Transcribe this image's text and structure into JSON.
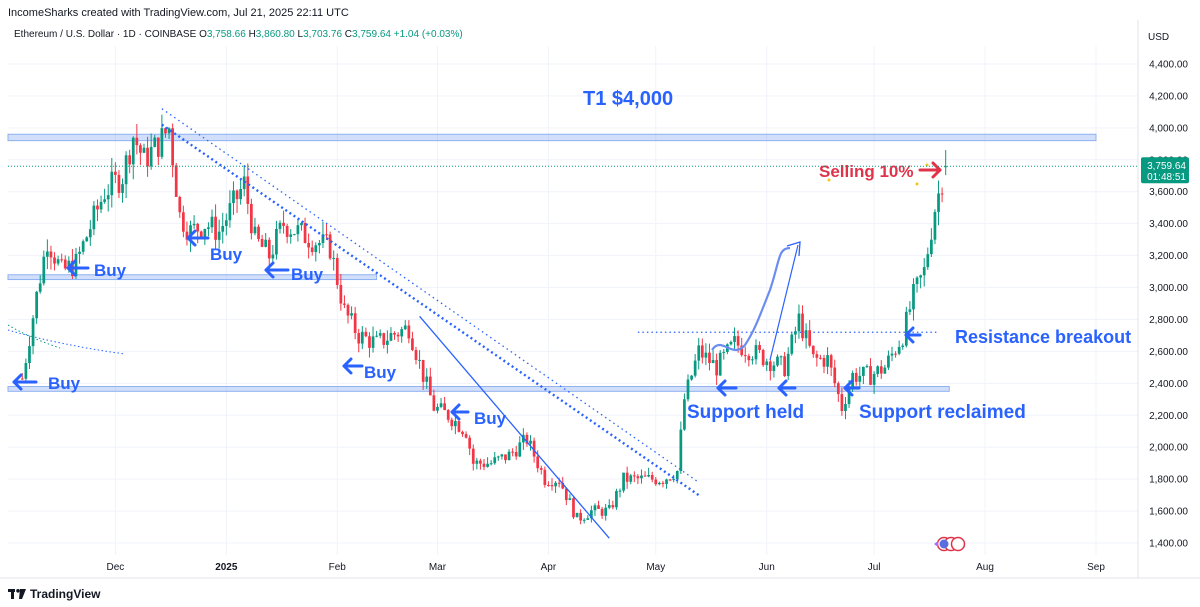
{
  "header": {
    "created_line": "IncomeSharks created with TradingView.com, Jul 21, 2025 22:11 UTC"
  },
  "symbol": {
    "name": "Ethereum / U.S. Dollar · 1D · COINBASE",
    "o_label": "O",
    "o": "3,758.66",
    "h_label": "H",
    "h": "3,860.80",
    "l_label": "L",
    "l": "3,703.76",
    "c_label": "C",
    "c": "3,759.64",
    "change": "+1.04 (+0.03%)"
  },
  "currency": "USD",
  "price_tag": {
    "price": "3,759.64",
    "countdown": "01:48:51"
  },
  "footer": {
    "brand": "TradingView"
  },
  "colors": {
    "up": "#089981",
    "down": "#f23645",
    "annotation": "#2962ff",
    "selling": "#e0334a",
    "zone": "#5b8def"
  },
  "chart_data": {
    "type": "candlestick",
    "title": "Ethereum / U.S. Dollar · 1D · COINBASE",
    "xlabel": "",
    "ylabel": "USD",
    "ylim": [
      1300,
      4550
    ],
    "y_ticks": [
      "1,400.00",
      "1,600.00",
      "1,800.00",
      "2,000.00",
      "2,200.00",
      "2,400.00",
      "2,600.00",
      "2,800.00",
      "3,000.00",
      "3,200.00",
      "3,400.00",
      "3,600.00",
      "3,800.00",
      "4,000.00",
      "4,200.00",
      "4,400.00"
    ],
    "y_tick_values": [
      1400,
      1600,
      1800,
      2000,
      2200,
      2400,
      2600,
      2800,
      3000,
      3200,
      3400,
      3600,
      3800,
      4000,
      4200,
      4400
    ],
    "x_ticks": [
      {
        "label": "Dec",
        "date": "2024-12-01"
      },
      {
        "label": "2025",
        "date": "2025-01-01"
      },
      {
        "label": "Feb",
        "date": "2025-02-01"
      },
      {
        "label": "Mar",
        "date": "2025-03-01"
      },
      {
        "label": "Apr",
        "date": "2025-04-01"
      },
      {
        "label": "May",
        "date": "2025-05-01"
      },
      {
        "label": "Jun",
        "date": "2025-06-01"
      },
      {
        "label": "Jul",
        "date": "2025-07-01"
      },
      {
        "label": "Aug",
        "date": "2025-08-01"
      },
      {
        "label": "Sep",
        "date": "2025-09-01"
      }
    ],
    "close_path": [
      [
        "2024-11-05",
        2430
      ],
      [
        "2024-11-09",
        2950
      ],
      [
        "2024-11-12",
        3300
      ],
      [
        "2024-11-16",
        3100
      ],
      [
        "2024-11-20",
        3150
      ],
      [
        "2024-11-24",
        3380
      ],
      [
        "2024-11-28",
        3600
      ],
      [
        "2024-12-03",
        3700
      ],
      [
        "2024-12-06",
        3950
      ],
      [
        "2024-12-09",
        3800
      ],
      [
        "2024-12-13",
        3900
      ],
      [
        "2024-12-16",
        4000
      ],
      [
        "2024-12-19",
        3450
      ],
      [
        "2024-12-22",
        3350
      ],
      [
        "2024-12-26",
        3400
      ],
      [
        "2024-12-30",
        3350
      ],
      [
        "2025-01-06",
        3650
      ],
      [
        "2025-01-09",
        3300
      ],
      [
        "2025-01-13",
        3200
      ],
      [
        "2025-01-17",
        3400
      ],
      [
        "2025-01-21",
        3350
      ],
      [
        "2025-01-25",
        3300
      ],
      [
        "2025-01-30",
        3250
      ],
      [
        "2025-02-03",
        2850
      ],
      [
        "2025-02-07",
        2700
      ],
      [
        "2025-02-12",
        2650
      ],
      [
        "2025-02-16",
        2700
      ],
      [
        "2025-02-21",
        2750
      ],
      [
        "2025-02-25",
        2450
      ],
      [
        "2025-02-28",
        2250
      ],
      [
        "2025-03-04",
        2200
      ],
      [
        "2025-03-09",
        2100
      ],
      [
        "2025-03-11",
        1900
      ],
      [
        "2025-03-16",
        1900
      ],
      [
        "2025-03-21",
        1950
      ],
      [
        "2025-03-26",
        2050
      ],
      [
        "2025-03-31",
        1800
      ],
      [
        "2025-04-04",
        1800
      ],
      [
        "2025-04-09",
        1550
      ],
      [
        "2025-04-13",
        1600
      ],
      [
        "2025-04-18",
        1600
      ],
      [
        "2025-04-22",
        1800
      ],
      [
        "2025-04-27",
        1800
      ],
      [
        "2025-05-03",
        1800
      ],
      [
        "2025-05-07",
        1850
      ],
      [
        "2025-05-09",
        2300
      ],
      [
        "2025-05-13",
        2600
      ],
      [
        "2025-05-18",
        2500
      ],
      [
        "2025-05-23",
        2650
      ],
      [
        "2025-05-28",
        2600
      ],
      [
        "2025-06-01",
        2550
      ],
      [
        "2025-06-06",
        2500
      ],
      [
        "2025-06-10",
        2800
      ],
      [
        "2025-06-14",
        2550
      ],
      [
        "2025-06-18",
        2550
      ],
      [
        "2025-06-22",
        2250
      ],
      [
        "2025-06-25",
        2450
      ],
      [
        "2025-06-30",
        2450
      ],
      [
        "2025-07-04",
        2500
      ],
      [
        "2025-07-09",
        2700
      ],
      [
        "2025-07-12",
        2950
      ],
      [
        "2025-07-15",
        3100
      ],
      [
        "2025-07-18",
        3500
      ],
      [
        "2025-07-21",
        3760
      ]
    ],
    "last": {
      "date": "2025-07-21",
      "price": 3759.64
    },
    "levels": [
      {
        "type": "zone",
        "from": 3920,
        "to": 3960,
        "start": "2024-11-01",
        "end": "2025-09-01"
      },
      {
        "type": "zone",
        "from": 3050,
        "to": 3080,
        "start": "2024-11-01",
        "end": "2025-02-12"
      },
      {
        "type": "zone",
        "from": 2350,
        "to": 2380,
        "start": "2024-11-01",
        "end": "2025-07-22"
      },
      {
        "type": "dotted-level",
        "price": 2720,
        "start": "2025-04-26",
        "end": "2025-07-19"
      }
    ],
    "trendlines": [
      {
        "style": "dotted",
        "from": [
          "2024-12-14",
          4120
        ],
        "to": [
          "2025-05-13",
          1780
        ]
      },
      {
        "style": "dense-dotted",
        "from": [
          "2024-12-14",
          4020
        ],
        "to": [
          "2025-05-13",
          1700
        ]
      },
      {
        "style": "solid",
        "from": [
          "2025-02-24",
          2820
        ],
        "to": [
          "2025-04-18",
          1430
        ]
      }
    ],
    "annotations": [
      {
        "text": "T1 $4,000",
        "date": "2025-05-09",
        "price": 4180
      },
      {
        "text": "Selling 10%",
        "date": "2025-07-05",
        "price": 3760
      },
      {
        "text": "Resistance breakout",
        "date": "2025-07-23",
        "price": 2690
      },
      {
        "text": "Support held",
        "date": "2025-05-10",
        "price": 2190
      },
      {
        "text": "Support reclaimed",
        "date": "2025-07-04",
        "price": 2190
      },
      {
        "text": "Buy",
        "date": "2024-11-17",
        "price": 3110
      },
      {
        "text": "Buy",
        "date": "2024-12-30",
        "price": 3300
      },
      {
        "text": "Buy",
        "date": "2025-01-20",
        "price": 3095
      },
      {
        "text": "Buy",
        "date": "2025-02-09",
        "price": 2490
      },
      {
        "text": "Buy",
        "date": "2025-03-14",
        "price": 2170
      },
      {
        "text": "Buy",
        "date": "2024-11-07",
        "price": 2380
      }
    ]
  }
}
